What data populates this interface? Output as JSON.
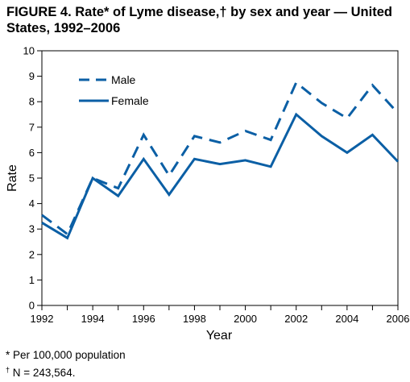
{
  "title": {
    "line1": "FIGURE 4. Rate* of Lyme disease,† by sex and year — United",
    "line2": "States, 1992–2006"
  },
  "chart_data": {
    "type": "line",
    "xlabel": "Year",
    "ylabel": "Rate",
    "xlim": [
      1992,
      2006
    ],
    "ylim": [
      0,
      10
    ],
    "x_ticks": [
      1992,
      1993,
      1994,
      1995,
      1996,
      1997,
      1998,
      1999,
      2000,
      2001,
      2002,
      2003,
      2004,
      2005,
      2006
    ],
    "x_tick_labels": [
      "1992",
      "1994",
      "1996",
      "1998",
      "2000",
      "2002",
      "2004",
      "2006"
    ],
    "y_ticks": [
      0,
      1,
      2,
      3,
      4,
      5,
      6,
      7,
      8,
      9,
      10
    ],
    "grid": false,
    "legend_position": "top-left",
    "line_color": "#0b5fa5",
    "x": [
      1992,
      1993,
      1994,
      1995,
      1996,
      1997,
      1998,
      1999,
      2000,
      2001,
      2002,
      2003,
      2004,
      2005,
      2006
    ],
    "series": [
      {
        "name": "Male",
        "style": "dashed",
        "values": [
          3.55,
          2.8,
          5.0,
          4.6,
          6.7,
          5.1,
          6.65,
          6.4,
          6.85,
          6.5,
          8.75,
          7.95,
          7.35,
          8.65,
          7.55
        ]
      },
      {
        "name": "Female",
        "style": "solid",
        "values": [
          3.25,
          2.65,
          5.0,
          4.3,
          5.75,
          4.35,
          5.75,
          5.55,
          5.7,
          5.45,
          7.5,
          6.65,
          6.0,
          6.7,
          5.65
        ]
      }
    ]
  },
  "footnotes": {
    "star": "* Per 100,000 population",
    "dagger_symbol": "†",
    "dagger_text": " N = 243,564."
  }
}
